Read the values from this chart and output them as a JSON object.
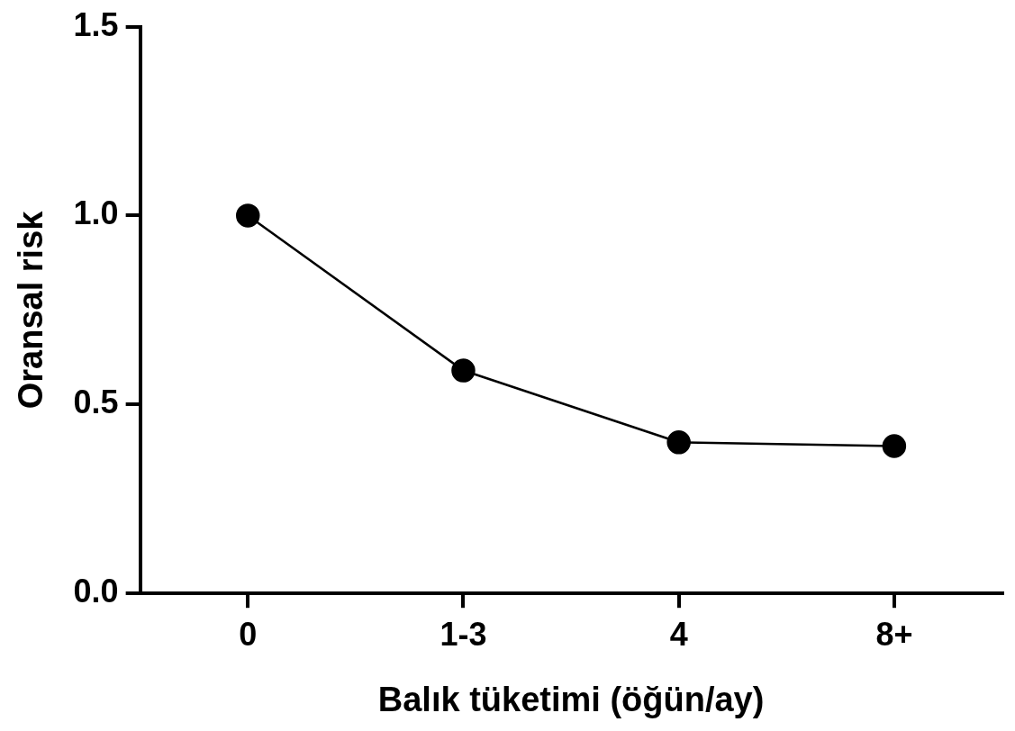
{
  "chart_data": {
    "type": "line",
    "xlabel": "Balık tüketimi (öğün/ay)",
    "ylabel": "Oransal risk",
    "categories": [
      "0",
      "1-3",
      "4",
      "8+"
    ],
    "series": [
      {
        "color": "#000000",
        "values": [
          1.0,
          0.59,
          0.4,
          0.39
        ]
      }
    ],
    "ylim": [
      0,
      1.5
    ],
    "yticks": [
      {
        "value": 0,
        "label": "0.0"
      },
      {
        "value": 0.5,
        "label": "0.5"
      },
      {
        "value": 1,
        "label": "1.0"
      },
      {
        "value": 1.5,
        "label": "1.5"
      }
    ],
    "grid": false,
    "legend": false,
    "marker": "circle",
    "line_style": "solid"
  }
}
